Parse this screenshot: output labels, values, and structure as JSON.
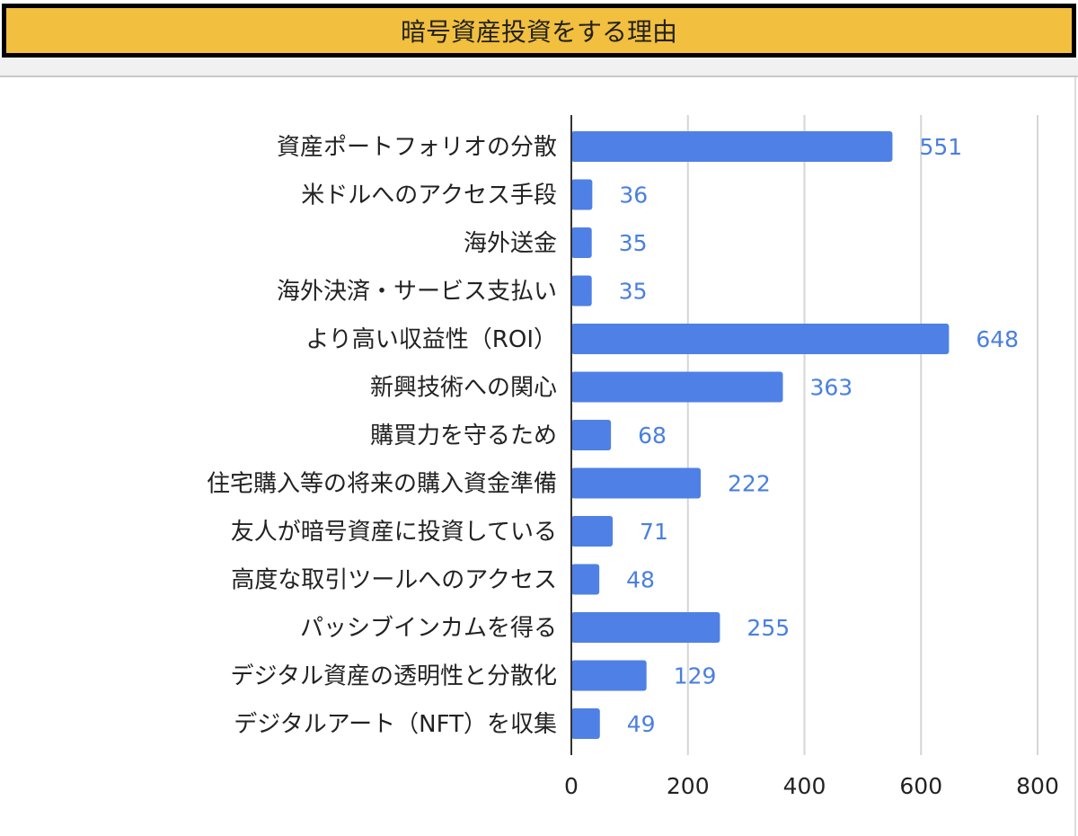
{
  "chart_data": {
    "type": "bar",
    "orientation": "horizontal",
    "title": "暗号資産投資をする理由",
    "categories": [
      "資産ポートフォリオの分散",
      "米ドルへのアクセス手段",
      "海外送金",
      "海外決済・サービス支払い",
      "より高い収益性（ROI）",
      "新興技術への関心",
      "購買力を守るため",
      "住宅購入等の将来の購入資金準備",
      "友人が暗号資産に投資している",
      "高度な取引ツールへのアクセス",
      "パッシブインカムを得る",
      "デジタル資産の透明性と分散化",
      "デジタルアート（NFT）を収集"
    ],
    "values": [
      551,
      36,
      35,
      35,
      648,
      363,
      68,
      222,
      71,
      48,
      255,
      129,
      49
    ],
    "xlim": [
      0,
      800
    ],
    "xticks": [
      "0",
      "200",
      "400",
      "600",
      "800"
    ],
    "grid": true,
    "data_labels": true,
    "legend": "none",
    "colors": {
      "bar": "#4f80e6",
      "label": "#4a7fe0",
      "title_bg": "#f2bf3f"
    }
  }
}
